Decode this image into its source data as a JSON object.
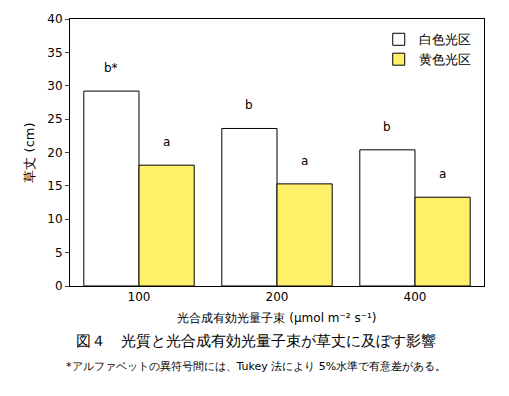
{
  "chart_data": {
    "type": "bar",
    "title": "図４　光質と光合成有効光量子束が草丈に及ぼす影響",
    "footnote": "*アルファベットの異符号間には、Tukey 法により 5%水準で有意差がある。",
    "x_label": "光合成有効光量子束 (μmol m⁻² s⁻¹)",
    "y_label": "草丈 (cm)",
    "categories": [
      "100",
      "200",
      "400"
    ],
    "series": [
      {
        "name": "白色光区",
        "color": "#ffffff",
        "values": [
          29.2,
          23.6,
          20.4
        ]
      },
      {
        "name": "黄色光区",
        "color": "#fff06a",
        "values": [
          18.1,
          15.3,
          13.3
        ]
      }
    ],
    "annotations": [
      {
        "category": "100",
        "series": "白色光区",
        "text": "b*"
      },
      {
        "category": "100",
        "series": "黄色光区",
        "text": "a"
      },
      {
        "category": "200",
        "series": "白色光区",
        "text": "b"
      },
      {
        "category": "200",
        "series": "黄色光区",
        "text": "a"
      },
      {
        "category": "400",
        "series": "白色光区",
        "text": "b"
      },
      {
        "category": "400",
        "series": "黄色光区",
        "text": "a"
      }
    ],
    "ylim": [
      0,
      40
    ],
    "yticks": [
      0,
      5,
      10,
      15,
      20,
      25,
      30,
      35,
      40
    ],
    "grid": false,
    "legend": "top right"
  }
}
